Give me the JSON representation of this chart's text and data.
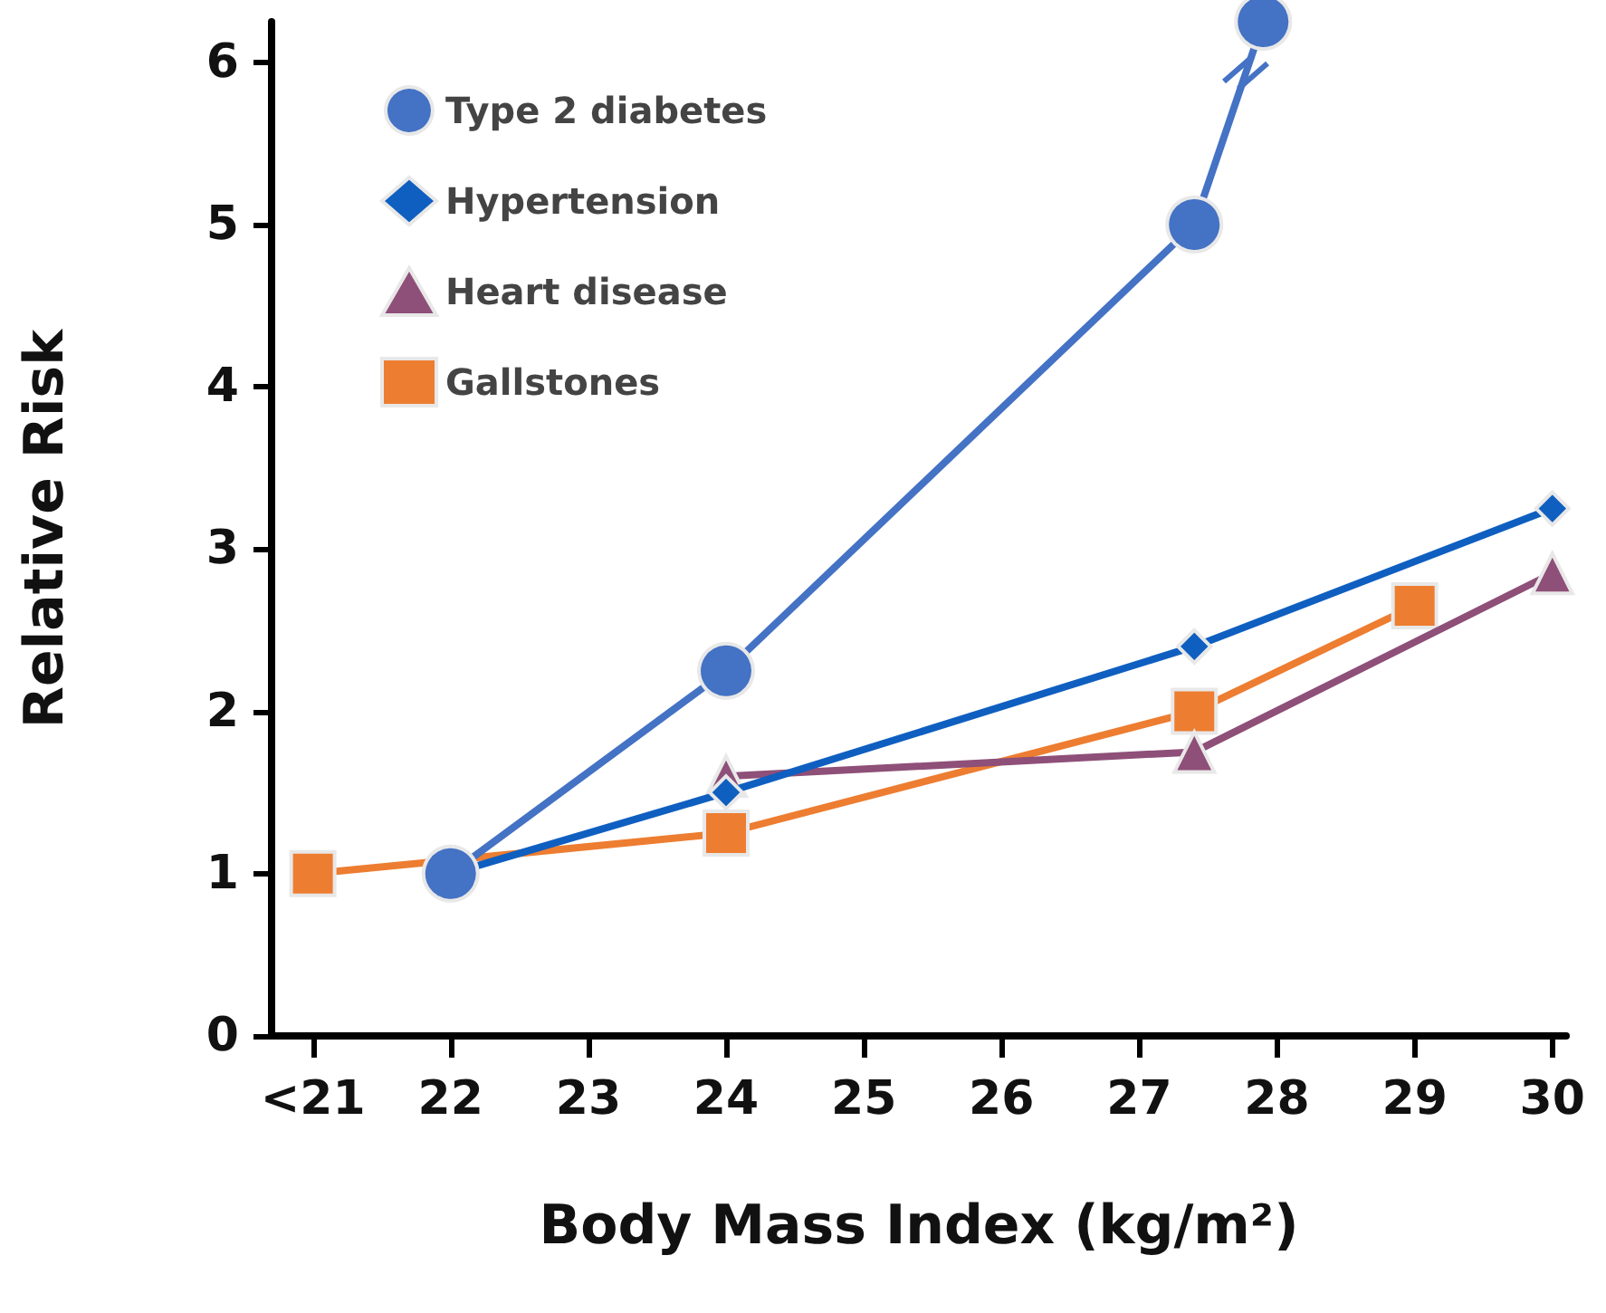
{
  "chart_data": {
    "type": "line",
    "xlabel": "Body Mass Index (kg/m²)",
    "ylabel": "Relative Risk",
    "xlim": [
      20.7,
      30.1
    ],
    "xticks": [
      {
        "value": 21,
        "label": "<21"
      },
      22,
      23,
      24,
      25,
      26,
      27,
      28,
      29,
      30
    ],
    "ylim": [
      0,
      6.25
    ],
    "yticks": [
      0,
      1,
      2,
      3,
      4,
      5,
      6
    ],
    "grid": false,
    "legend": "top left",
    "series": [
      {
        "name": "Type 2 diabetes",
        "color": "#4472c4",
        "marker": "circle",
        "x": [
          22,
          24,
          27.4,
          27.9
        ],
        "values": [
          1.0,
          2.25,
          5.0,
          6.25
        ]
      },
      {
        "name": "Hypertension",
        "color": "#0f5fc0",
        "marker": "diamond",
        "x": [
          22,
          24,
          27.4,
          30
        ],
        "values": [
          1.0,
          1.5,
          2.4,
          3.25
        ]
      },
      {
        "name": "Heart disease",
        "color": "#8e4f78",
        "marker": "triangle",
        "x": [
          24,
          27.4,
          30
        ],
        "values": [
          1.6,
          1.75,
          2.85
        ]
      },
      {
        "name": "Gallstones",
        "color": "#ed7d31",
        "marker": "square",
        "x": [
          21,
          24,
          27.4,
          29
        ],
        "values": [
          1.0,
          1.25,
          2.0,
          2.65
        ]
      }
    ]
  }
}
